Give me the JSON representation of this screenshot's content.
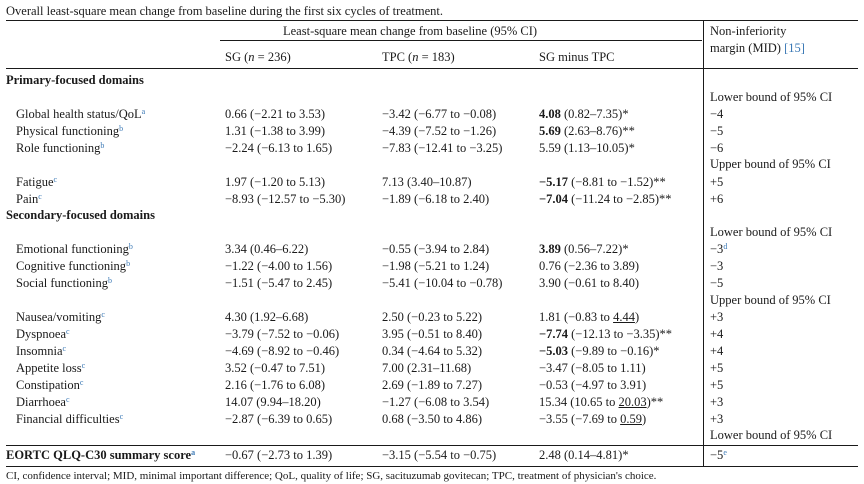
{
  "caption": "Overall least-square mean change from baseline during the first six cycles of treatment.",
  "header": {
    "group_label": "Least-square mean change from baseline (95% CI)",
    "col_sg_prefix": "SG (",
    "col_sg_n": "n",
    "col_sg_suffix": " = 236)",
    "col_tpc_prefix": "TPC (",
    "col_tpc_n": "n",
    "col_tpc_suffix": " = 183)",
    "col_diff": "SG minus TPC",
    "margin_line1": "Non-inferiority",
    "margin_line2": "margin (MID) ",
    "margin_ref": "[15]"
  },
  "sections": {
    "primary": "Primary-focused domains",
    "secondary": "Secondary-focused domains"
  },
  "bounds": {
    "lower": "Lower bound of 95% CI",
    "upper": "Upper bound of 95% CI"
  },
  "rows": [
    {
      "name": "Global health status/QoL",
      "sup": "a",
      "sg": "0.66 (−2.21 to 3.53)",
      "tpc": "−3.42 (−6.77 to −0.08)",
      "diff_bold": "4.08",
      "diff_rest": " (0.82–7.35)*",
      "margin": "−4",
      "margin_sup": ""
    },
    {
      "name": "Physical functioning",
      "sup": "b",
      "sg": "1.31 (−1.38 to 3.99)",
      "tpc": "−4.39 (−7.52 to −1.26)",
      "diff_bold": "5.69",
      "diff_rest": " (2.63–8.76)**",
      "margin": "−5",
      "margin_sup": ""
    },
    {
      "name": "Role functioning",
      "sup": "b",
      "sg": "−2.24 (−6.13 to 1.65)",
      "tpc": "−7.83 (−12.41 to −3.25)",
      "diff_bold": "",
      "diff_rest": "5.59 (1.13–10.05)*",
      "margin": "−6",
      "margin_sup": ""
    },
    {
      "name": "Fatigue",
      "sup": "c",
      "sg": "1.97 (−1.20 to 5.13)",
      "tpc": "7.13 (3.40–10.87)",
      "diff_bold": "−5.17",
      "diff_rest": " (−8.81 to −1.52)**",
      "margin": "+5",
      "margin_sup": ""
    },
    {
      "name": "Pain",
      "sup": "c",
      "sg": "−8.93 (−12.57 to −5.30)",
      "tpc": "−1.89 (−6.18 to 2.40)",
      "diff_bold": "−7.04",
      "diff_rest": " (−11.24 to −2.85)**",
      "margin": "+6",
      "margin_sup": ""
    },
    {
      "name": "Emotional functioning",
      "sup": "b",
      "sg": "3.34 (0.46–6.22)",
      "tpc": "−0.55 (−3.94 to 2.84)",
      "diff_bold": "3.89",
      "diff_rest": " (0.56–7.22)*",
      "margin": "−3",
      "margin_sup": "d"
    },
    {
      "name": "Cognitive functioning",
      "sup": "b",
      "sg": "−1.22 (−4.00 to 1.56)",
      "tpc": "−1.98 (−5.21 to 1.24)",
      "diff_bold": "",
      "diff_rest": "0.76 (−2.36 to 3.89)",
      "margin": "−3",
      "margin_sup": ""
    },
    {
      "name": "Social functioning",
      "sup": "b",
      "sg": "−1.51 (−5.47 to 2.45)",
      "tpc": "−5.41 (−10.04 to −0.78)",
      "diff_bold": "",
      "diff_rest": "3.90 (−0.61 to 8.40)",
      "margin": "−5",
      "margin_sup": ""
    },
    {
      "name": "Nausea/vomiting",
      "sup": "c",
      "sg": "4.30 (1.92–6.68)",
      "tpc": "2.50 (−0.23 to 5.22)",
      "diff_bold": "",
      "diff_rest": "1.81 (−0.83 to ",
      "diff_u": "4.44",
      "diff_after": ")",
      "margin": "+3",
      "margin_sup": ""
    },
    {
      "name": "Dyspnoea",
      "sup": "c",
      "sg": "−3.79 (−7.52 to −0.06)",
      "tpc": "3.95 (−0.51 to 8.40)",
      "diff_bold": "−7.74",
      "diff_rest": " (−12.13 to −3.35)**",
      "margin": "+4",
      "margin_sup": ""
    },
    {
      "name": "Insomnia",
      "sup": "c",
      "sg": "−4.69 (−8.92 to −0.46)",
      "tpc": "0.34 (−4.64 to 5.32)",
      "diff_bold": "−5.03",
      "diff_rest": " (−9.89 to −0.16)*",
      "margin": "+4",
      "margin_sup": ""
    },
    {
      "name": "Appetite loss",
      "sup": "c",
      "sg": "3.52 (−0.47 to 7.51)",
      "tpc": "7.00 (2.31–11.68)",
      "diff_bold": "",
      "diff_rest": "−3.47 (−8.05 to 1.11)",
      "margin": "+5",
      "margin_sup": ""
    },
    {
      "name": "Constipation",
      "sup": "c",
      "sg": "2.16 (−1.76 to 6.08)",
      "tpc": "2.69 (−1.89 to 7.27)",
      "diff_bold": "",
      "diff_rest": "−0.53 (−4.97 to 3.91)",
      "margin": "+5",
      "margin_sup": ""
    },
    {
      "name": "Diarrhoea",
      "sup": "c",
      "sg": "14.07 (9.94–18.20)",
      "tpc": "−1.27 (−6.08 to 3.54)",
      "diff_bold": "",
      "diff_rest": "15.34 (10.65 to ",
      "diff_u": "20.03",
      "diff_after": ")**",
      "margin": "+3",
      "margin_sup": ""
    },
    {
      "name": "Financial difficulties",
      "sup": "c",
      "sg": "−2.87 (−6.39 to 0.65)",
      "tpc": "0.68 (−3.50 to 4.86)",
      "diff_bold": "",
      "diff_rest": "−3.55 (−7.69 to ",
      "diff_u": "0.59",
      "diff_after": ")",
      "margin": "+3",
      "margin_sup": ""
    },
    {
      "name": "EORTC QLQ-C30 summary score",
      "sup": "a",
      "sg": "−0.67 (−2.73 to 1.39)",
      "tpc": "−3.15 (−5.54 to −0.75)",
      "diff_bold": "",
      "diff_rest": "2.48 (0.14–4.81)*",
      "margin": "−5",
      "margin_sup": "e"
    }
  ],
  "footer_fragment": "CI, confidence interval; MID, minimal important difference; QoL, quality of life; SG, sacituzumab govitecan; TPC, treatment of physician's choice."
}
